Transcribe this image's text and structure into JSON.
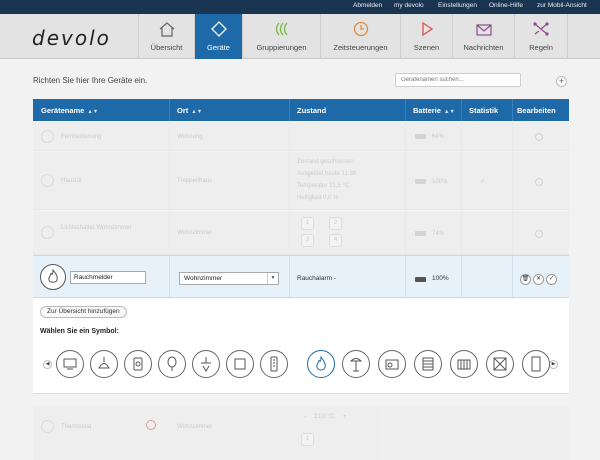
{
  "topbar": {
    "links": [
      "Abmelden",
      "my devolo",
      "Einstellungen",
      "Online-Hilfe",
      "zur Mobil-Ansicht"
    ]
  },
  "header": {
    "logo": "devolo",
    "tabs": [
      {
        "label": "Übersicht",
        "icon": "home-icon",
        "active": false
      },
      {
        "label": "Geräte",
        "icon": "diamond-icon",
        "active": true
      },
      {
        "label": "Gruppierungen",
        "icon": "groups-icon",
        "active": false
      },
      {
        "label": "Zeitsteuerungen",
        "icon": "clock-icon",
        "active": false
      },
      {
        "label": "Szenen",
        "icon": "play-icon",
        "active": false
      },
      {
        "label": "Nachrichten",
        "icon": "envelope-icon",
        "active": false
      },
      {
        "label": "Regeln",
        "icon": "rules-icon",
        "active": false
      }
    ],
    "colors": {
      "active": "#1e6aa8",
      "groups": "#7ab648",
      "clock": "#e08a3c",
      "play": "#d9534f",
      "envelope": "#8e4b8e"
    }
  },
  "page": {
    "title": "Richten Sie hier Ihre Geräte ein.",
    "search_placeholder": "Gerätenamen suchen...",
    "add_label": "+"
  },
  "table": {
    "columns": [
      "Gerätename",
      "Ort",
      "Zustand",
      "Batterie",
      "Statistik",
      "Bearbeiten"
    ],
    "rows": [
      {
        "name": "Fernbedienung",
        "location": "Wohnung",
        "battery": "64%"
      },
      {
        "name": "Haustür",
        "location": "Treppenhaus",
        "status": [
          "Zustand geschlossen",
          "Ausgelöst heute 11:38",
          "Temperatur 21,5 °C",
          "Helligkeit 0,0 %"
        ],
        "battery": "100%"
      },
      {
        "name": "Lichtschalter Wohnzimmer",
        "location": "Wohnzimmer",
        "buttons": [
          "1",
          "2",
          "3",
          "4"
        ],
        "battery": "74%"
      }
    ],
    "edit_row": {
      "name_value": "Rauchmelder",
      "location_value": "Wohnzimmer",
      "status": "Rauchalarm -",
      "battery": "100%"
    },
    "bottom_row": {
      "name": "Thermostat",
      "location": "Wohnzimmer",
      "temp": "21,0 °C",
      "button": "1"
    }
  },
  "panel": {
    "overview_button": "Zur Übersicht hinzufügen",
    "symbol_title": "Wählen Sie ein Symbol:",
    "symbols": [
      "tv-icon",
      "pendant-lamp-icon",
      "power-socket-icon",
      "balloon-icon",
      "ceiling-light-icon",
      "socket-box-icon",
      "remote-icon",
      "flame-icon",
      "floor-lamp-icon",
      "radio-icon",
      "shutter-icon",
      "heater-icon",
      "no-entry-icon",
      "door-icon"
    ]
  }
}
